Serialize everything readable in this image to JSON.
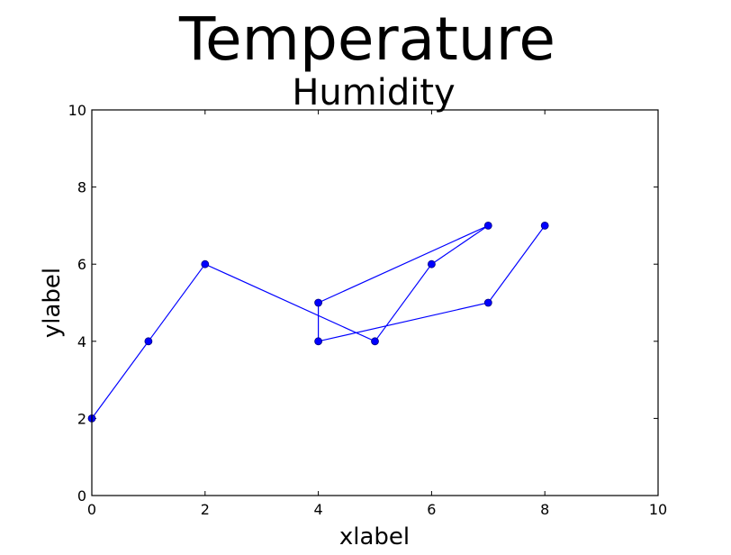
{
  "chart_data": {
    "type": "line",
    "suptitle": "Temperature",
    "title": "Humidity",
    "xlabel": "xlabel",
    "ylabel": "ylabel",
    "xlim": [
      0,
      10
    ],
    "ylim": [
      0,
      10
    ],
    "xticks": [
      "0",
      "2",
      "4",
      "6",
      "8",
      "10"
    ],
    "yticks": [
      "0",
      "2",
      "4",
      "6",
      "8",
      "10"
    ],
    "grid": false,
    "legend": "none",
    "series": [
      {
        "color": "#0000ff",
        "marker": "circle",
        "points": [
          {
            "x": 0,
            "y": 2
          },
          {
            "x": 1,
            "y": 4
          },
          {
            "x": 2,
            "y": 6
          },
          {
            "x": 5,
            "y": 4
          },
          {
            "x": 6,
            "y": 6
          },
          {
            "x": 7,
            "y": 7
          },
          {
            "x": 4,
            "y": 5
          },
          {
            "x": 4,
            "y": 4
          },
          {
            "x": 7,
            "y": 5
          },
          {
            "x": 8,
            "y": 7
          }
        ]
      }
    ]
  }
}
